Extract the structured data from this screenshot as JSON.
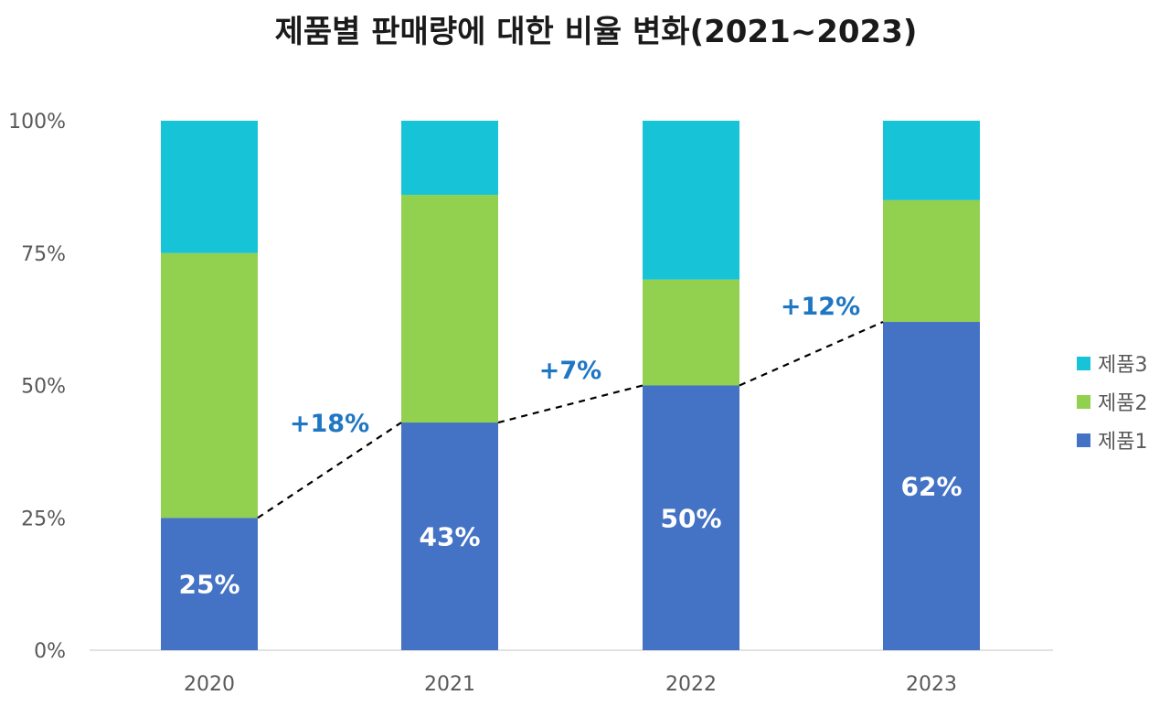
{
  "chart_data": {
    "type": "bar",
    "stacked": true,
    "title": "제품별 판매량에 대한 비율 변화(2021~2023)",
    "categories": [
      "2020",
      "2021",
      "2022",
      "2023"
    ],
    "ylim": [
      0,
      100
    ],
    "y_ticks": [
      {
        "value": 0,
        "label": "0%"
      },
      {
        "value": 25,
        "label": "25%"
      },
      {
        "value": 50,
        "label": "50%"
      },
      {
        "value": 75,
        "label": "75%"
      },
      {
        "value": 100,
        "label": "100%"
      }
    ],
    "series": [
      {
        "name": "제품1",
        "color": "#4472c4",
        "values": [
          25,
          43,
          50,
          62
        ]
      },
      {
        "name": "제품2",
        "color": "#92d050",
        "values": [
          50,
          43,
          20,
          23
        ]
      },
      {
        "name": "제품3",
        "color": "#17c3d6",
        "values": [
          25,
          14,
          30,
          15
        ]
      }
    ],
    "data_labels": [
      "25%",
      "43%",
      "50%",
      "62%"
    ],
    "change_labels": [
      "+18%",
      "+7%",
      "+12%"
    ],
    "connector": "dashed line linking top of 제품1 segments",
    "legend_position": "right",
    "grid": false
  }
}
